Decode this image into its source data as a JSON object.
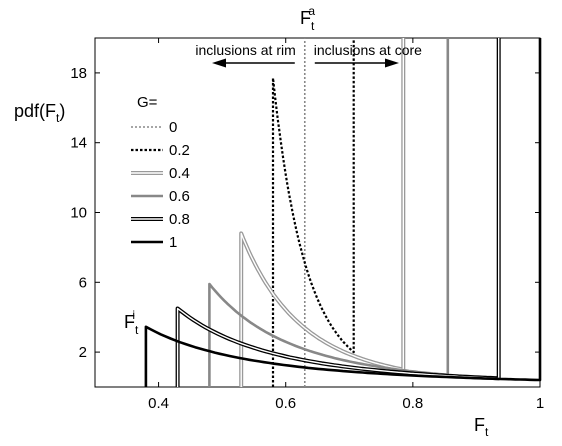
{
  "chart_data": {
    "type": "line",
    "xlabel_main": "F",
    "xlabel_sub": "t",
    "ylabel_prefix": "pdf(F",
    "ylabel_sub": "t",
    "ylabel_suffix": ")",
    "xlim": [
      0.3,
      1.0
    ],
    "ylim": [
      0,
      20
    ],
    "x_ticks": [
      0.4,
      0.6,
      0.8,
      1
    ],
    "x_tick_labels": [
      "0.4",
      "0.6",
      "0.8",
      "1"
    ],
    "y_ticks": [
      2,
      6,
      10,
      14,
      18
    ],
    "y_tick_labels": [
      "2",
      "6",
      "10",
      "14",
      "18"
    ],
    "grid": false,
    "legend_title": "G=",
    "legend_position": "left",
    "top_label_main": "F",
    "top_label_sub": "t",
    "top_label_sup": "a",
    "corner_label_main": "F",
    "corner_label_sub": "t",
    "corner_label_sup": "i",
    "annotations": {
      "rim": "inclusions at rim",
      "core": "inclusions at core"
    },
    "fa_x": 0.63,
    "series": [
      {
        "name": "0",
        "style": "gray-dotted",
        "x_start": 0.63,
        "x_end": 0.63,
        "y_start": 20,
        "y_end": 20
      },
      {
        "name": "0.2",
        "style": "black-dotted",
        "x_start": 0.58,
        "x_end": 0.707,
        "y_start": 17.7,
        "y_end": 2.0
      },
      {
        "name": "0.4",
        "style": "double-light",
        "x_start": 0.53,
        "x_end": 0.785,
        "y_start": 8.8,
        "y_end": 1.0
      },
      {
        "name": "0.6",
        "style": "gray-thick",
        "x_start": 0.48,
        "x_end": 0.855,
        "y_start": 5.9,
        "y_end": 0.7
      },
      {
        "name": "0.8",
        "style": "double-dark",
        "x_start": 0.43,
        "x_end": 0.935,
        "y_start": 4.5,
        "y_end": 0.5
      },
      {
        "name": "1",
        "style": "black-thick",
        "x_start": 0.38,
        "x_end": 1.0,
        "y_start": 3.45,
        "y_end": 0.4
      }
    ]
  }
}
